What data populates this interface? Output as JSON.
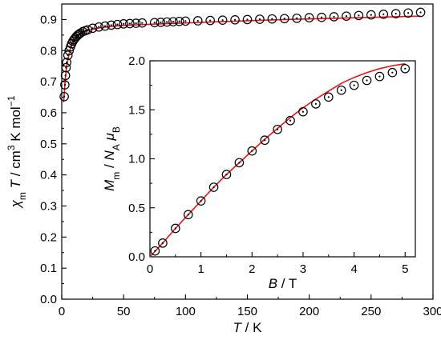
{
  "chart_data": [
    {
      "id": "main",
      "type": "scatter",
      "xlabel": "T / K",
      "ylabel": "χm T / cm3 K mol−1",
      "xlim": [
        0,
        300
      ],
      "ylim": [
        0,
        0.95
      ],
      "x_ticks": [
        0,
        50,
        100,
        150,
        200,
        250,
        300
      ],
      "y_ticks": [
        0.0,
        0.1,
        0.2,
        0.3,
        0.4,
        0.5,
        0.6,
        0.7,
        0.8,
        0.9
      ],
      "grid": false,
      "series": [
        {
          "kind": "markers",
          "marker": "open-circle-with-dot",
          "color": "#000000",
          "x": [
            2,
            2.5,
            3,
            3.5,
            4,
            5,
            6,
            7,
            8,
            9,
            10,
            11,
            12,
            13,
            14,
            15,
            17,
            19,
            21,
            25,
            30,
            35,
            40,
            45,
            50,
            55,
            60,
            65,
            75,
            80,
            85,
            90,
            95,
            100,
            110,
            120,
            130,
            140,
            150,
            160,
            170,
            180,
            190,
            200,
            210,
            220,
            230,
            240,
            250,
            260,
            270,
            280,
            290
          ],
          "y": [
            0.652,
            0.69,
            0.72,
            0.745,
            0.762,
            0.785,
            0.8,
            0.812,
            0.822,
            0.83,
            0.836,
            0.841,
            0.846,
            0.85,
            0.853,
            0.856,
            0.861,
            0.864,
            0.867,
            0.872,
            0.876,
            0.879,
            0.882,
            0.884,
            0.886,
            0.887,
            0.888,
            0.889,
            0.89,
            0.891,
            0.892,
            0.893,
            0.894,
            0.895,
            0.896,
            0.897,
            0.898,
            0.899,
            0.9,
            0.901,
            0.902,
            0.903,
            0.904,
            0.906,
            0.907,
            0.909,
            0.911,
            0.913,
            0.915,
            0.917,
            0.919,
            0.921,
            0.923
          ]
        },
        {
          "kind": "line",
          "color": "#e8141a",
          "x": [
            1.5,
            2,
            3,
            4,
            5,
            6,
            7,
            8,
            10,
            12,
            14,
            16,
            18,
            20,
            25,
            30,
            40,
            50,
            60,
            80,
            100,
            120,
            150,
            180,
            200,
            250,
            290
          ],
          "y": [
            0.634,
            0.66,
            0.715,
            0.75,
            0.772,
            0.79,
            0.805,
            0.815,
            0.83,
            0.841,
            0.849,
            0.855,
            0.859,
            0.863,
            0.869,
            0.873,
            0.878,
            0.881,
            0.883,
            0.886,
            0.889,
            0.892,
            0.896,
            0.9,
            0.902,
            0.907,
            0.911
          ]
        }
      ]
    },
    {
      "id": "inset",
      "type": "scatter",
      "xlabel": "B / T",
      "ylabel": "Mm / NA μB",
      "xlim": [
        0,
        5.2
      ],
      "ylim": [
        0,
        2.0
      ],
      "x_ticks": [
        0,
        1,
        2,
        3,
        4,
        5
      ],
      "y_ticks": [
        0.0,
        0.5,
        1.0,
        1.5,
        2.0
      ],
      "grid": false,
      "series": [
        {
          "kind": "markers",
          "marker": "open-circle-with-dot",
          "color": "#000000",
          "x": [
            0.1,
            0.25,
            0.5,
            0.75,
            1.0,
            1.25,
            1.5,
            1.75,
            2.0,
            2.25,
            2.5,
            2.75,
            3.0,
            3.25,
            3.5,
            3.75,
            4.0,
            4.25,
            4.5,
            4.75,
            5.0
          ],
          "y": [
            0.06,
            0.14,
            0.29,
            0.43,
            0.57,
            0.71,
            0.84,
            0.96,
            1.08,
            1.19,
            1.3,
            1.39,
            1.48,
            1.56,
            1.63,
            1.7,
            1.75,
            1.8,
            1.84,
            1.88,
            1.92
          ]
        },
        {
          "kind": "line",
          "color": "#e8141a",
          "x": [
            0,
            0.25,
            0.5,
            0.75,
            1.0,
            1.25,
            1.5,
            1.75,
            2.0,
            2.25,
            2.5,
            2.75,
            3.0,
            3.25,
            3.5,
            3.75,
            4.0,
            4.25,
            4.5,
            4.75,
            5.0
          ],
          "y": [
            0,
            0.14,
            0.29,
            0.43,
            0.57,
            0.71,
            0.84,
            0.96,
            1.08,
            1.2,
            1.31,
            1.42,
            1.52,
            1.61,
            1.69,
            1.77,
            1.83,
            1.88,
            1.92,
            1.95,
            1.97
          ]
        }
      ]
    }
  ]
}
